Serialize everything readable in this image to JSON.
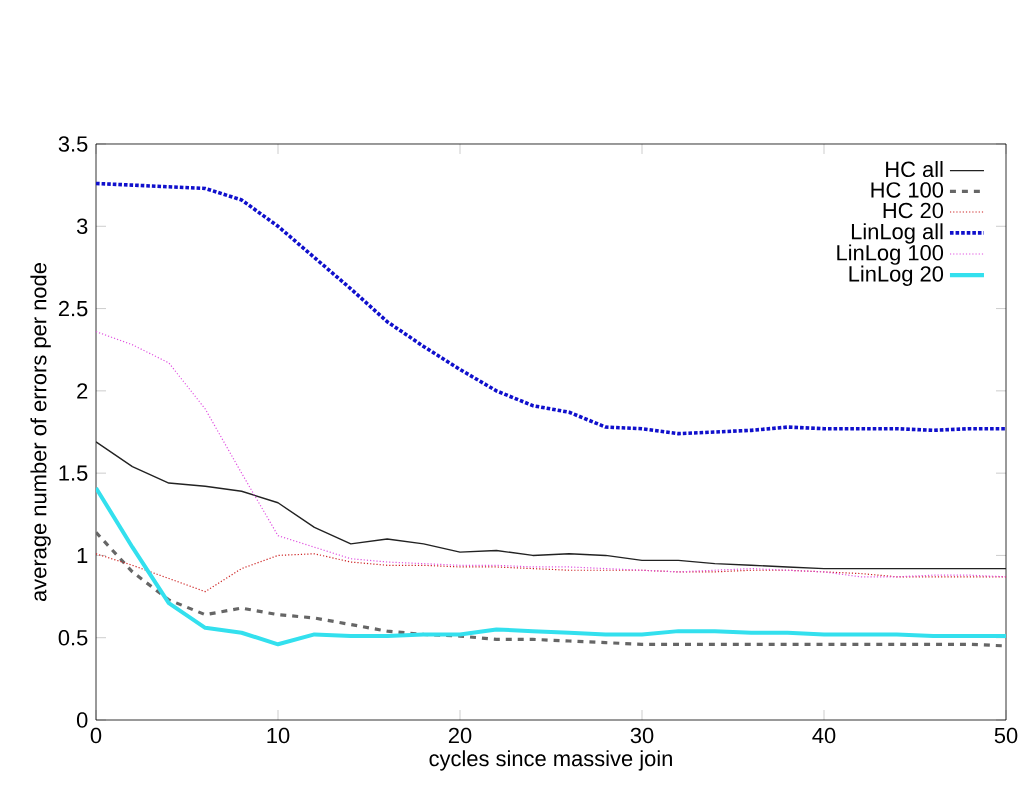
{
  "chart_data": {
    "type": "line",
    "xlabel": "cycles since massive join",
    "ylabel": "average number of errors per node",
    "x": [
      0,
      2,
      4,
      6,
      8,
      10,
      12,
      14,
      16,
      18,
      20,
      22,
      24,
      26,
      28,
      30,
      32,
      34,
      36,
      38,
      40,
      42,
      44,
      46,
      48,
      50
    ],
    "series": [
      {
        "name": "HC all",
        "color": "#222222",
        "line_style": "solid",
        "values": [
          1.69,
          1.54,
          1.44,
          1.42,
          1.39,
          1.32,
          1.17,
          1.07,
          1.1,
          1.07,
          1.02,
          1.03,
          1.0,
          1.01,
          1.0,
          0.97,
          0.97,
          0.95,
          0.94,
          0.93,
          0.92,
          0.92,
          0.92,
          0.92,
          0.92,
          0.92
        ]
      },
      {
        "name": "HC 100",
        "color": "#666666",
        "line_style": "dashed",
        "values": [
          1.14,
          0.9,
          0.73,
          0.64,
          0.68,
          0.64,
          0.62,
          0.58,
          0.54,
          0.52,
          0.51,
          0.49,
          0.49,
          0.48,
          0.47,
          0.46,
          0.46,
          0.46,
          0.46,
          0.46,
          0.46,
          0.46,
          0.46,
          0.46,
          0.46,
          0.45
        ]
      },
      {
        "name": "HC 20",
        "color": "#cc2020",
        "line_style": "dotted",
        "values": [
          1.01,
          0.94,
          0.86,
          0.78,
          0.92,
          1.0,
          1.01,
          0.96,
          0.94,
          0.94,
          0.93,
          0.93,
          0.92,
          0.91,
          0.91,
          0.91,
          0.9,
          0.9,
          0.91,
          0.91,
          0.9,
          0.89,
          0.87,
          0.87,
          0.87,
          0.87
        ]
      },
      {
        "name": "LinLog all",
        "color": "#1010cc",
        "line_style": "dotted",
        "values": [
          3.26,
          3.25,
          3.24,
          3.23,
          3.16,
          3.0,
          2.81,
          2.62,
          2.42,
          2.27,
          2.13,
          2.0,
          1.91,
          1.87,
          1.78,
          1.77,
          1.74,
          1.75,
          1.76,
          1.78,
          1.77,
          1.77,
          1.77,
          1.76,
          1.77,
          1.77
        ]
      },
      {
        "name": "LinLog 100",
        "color": "#e050e0",
        "line_style": "dotted",
        "values": [
          2.36,
          2.28,
          2.17,
          1.89,
          1.5,
          1.12,
          1.05,
          0.98,
          0.96,
          0.95,
          0.94,
          0.94,
          0.93,
          0.93,
          0.92,
          0.91,
          0.9,
          0.91,
          0.92,
          0.91,
          0.9,
          0.87,
          0.87,
          0.88,
          0.88,
          0.87
        ]
      },
      {
        "name": "LinLog 20",
        "color": "#33e0ee",
        "line_style": "solid",
        "values": [
          1.41,
          1.05,
          0.71,
          0.56,
          0.53,
          0.46,
          0.52,
          0.51,
          0.51,
          0.52,
          0.52,
          0.55,
          0.54,
          0.53,
          0.52,
          0.52,
          0.54,
          0.54,
          0.53,
          0.53,
          0.52,
          0.52,
          0.52,
          0.51,
          0.51,
          0.51
        ]
      }
    ],
    "xlim": [
      0,
      50
    ],
    "ylim": [
      0,
      3.5
    ],
    "xticks": [
      0,
      10,
      20,
      30,
      40,
      50
    ],
    "yticks": [
      0,
      0.5,
      1,
      1.5,
      2,
      2.5,
      3,
      3.5
    ],
    "grid": false,
    "legend": "top right"
  }
}
